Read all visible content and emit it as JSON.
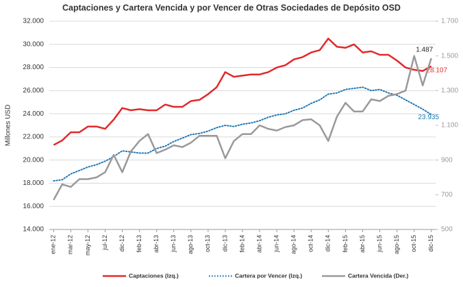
{
  "chart_data": {
    "type": "line",
    "title": "Captaciones y Cartera Vencida y por Vencer de Otras Sociedades de Depósito OSD",
    "y_label": "Millones USD",
    "categories": [
      "ene-12",
      null,
      "mar-12",
      null,
      "may-12",
      null,
      "jul-12",
      null,
      "dic-12",
      null,
      "feb-13",
      null,
      "abr-13",
      null,
      "jun-13",
      null,
      "ago-13",
      null,
      "oct-13",
      null,
      "dic-13",
      null,
      "feb-14",
      null,
      "abr-14",
      null,
      "jun-14",
      null,
      "ago-14",
      null,
      "oct-14",
      null,
      "dic-14",
      null,
      "feb-15",
      null,
      "abr-15",
      null,
      "jun-15",
      null,
      "ago-15",
      null,
      "oct-15",
      null,
      "dic-15"
    ],
    "ylim": [
      14000,
      32000
    ],
    "yticks": [
      {
        "value": 14000,
        "label": "14.000"
      },
      {
        "value": 16000,
        "label": "16.000"
      },
      {
        "value": 18000,
        "label": "18.000"
      },
      {
        "value": 20000,
        "label": "20.000"
      },
      {
        "value": 22000,
        "label": "22.000"
      },
      {
        "value": 24000,
        "label": "24.000"
      },
      {
        "value": 26000,
        "label": "26.000"
      },
      {
        "value": 28000,
        "label": "28.000"
      },
      {
        "value": 30000,
        "label": "30.000"
      },
      {
        "value": 32000,
        "label": "32.000"
      }
    ],
    "y2lim": [
      500,
      1700
    ],
    "y2ticks": [
      500,
      700,
      900,
      {
        "value": 1100,
        "label": "1.100"
      },
      {
        "value": 1300,
        "label": "1.300"
      },
      {
        "value": 1500,
        "label": "1.500"
      },
      {
        "value": 1700,
        "label": "1.700"
      }
    ],
    "grid": true,
    "legend": "bottom",
    "series": [
      {
        "name": "Captaciones (Izq.)",
        "color": "#e2282a",
        "dash": "solid",
        "values": [
          21300,
          21700,
          22400,
          22400,
          22900,
          22900,
          22700,
          23500,
          24500,
          24300,
          24400,
          24300,
          24300,
          24800,
          24600,
          24600,
          25100,
          25200,
          25700,
          26300,
          27600,
          27200,
          27300,
          27400,
          27400,
          27600,
          28000,
          28200,
          28700,
          28900,
          29300,
          29500,
          30500,
          29800,
          29700,
          30000,
          29300,
          29400,
          29100,
          29100,
          28600,
          28000,
          27800,
          27700,
          28107
        ],
        "value_labels": [
          null,
          null,
          null,
          null,
          null,
          null,
          null,
          null,
          null,
          null,
          null,
          null,
          null,
          null,
          null,
          null,
          null,
          null,
          null,
          null,
          null,
          null,
          null,
          null,
          null,
          null,
          null,
          null,
          null,
          null,
          null,
          null,
          null,
          null,
          null,
          null,
          null,
          null,
          null,
          null,
          null,
          null,
          null,
          null,
          "28.107"
        ]
      },
      {
        "name": "Cartera por Vencer (Izq.)",
        "color": "#1f78b4",
        "dash": "dotted",
        "values": [
          18200,
          18300,
          18800,
          19100,
          19400,
          19600,
          19900,
          20300,
          20800,
          20700,
          20600,
          20600,
          21000,
          21200,
          21600,
          21900,
          22200,
          22300,
          22500,
          22800,
          23000,
          22900,
          23100,
          23200,
          23400,
          23700,
          23900,
          24000,
          24300,
          24500,
          24900,
          25200,
          25700,
          25800,
          26100,
          26200,
          26300,
          26000,
          26100,
          25800,
          25600,
          25200,
          24800,
          24400,
          23935
        ],
        "value_labels": [
          null,
          null,
          null,
          null,
          null,
          null,
          null,
          null,
          null,
          null,
          null,
          null,
          null,
          null,
          null,
          null,
          null,
          null,
          null,
          null,
          null,
          null,
          null,
          null,
          null,
          null,
          null,
          null,
          null,
          null,
          null,
          null,
          null,
          null,
          null,
          null,
          null,
          null,
          null,
          null,
          null,
          null,
          null,
          null,
          "23.935"
        ]
      },
      {
        "name": "Cartera Vencida (Der.)",
        "color": "#999999",
        "dash": "solid",
        "axis": "y2",
        "values": [
          670,
          760,
          745,
          790,
          790,
          800,
          830,
          930,
          830,
          950,
          1010,
          1050,
          940,
          960,
          985,
          975,
          1000,
          1040,
          1040,
          1040,
          910,
          1010,
          1050,
          1050,
          1100,
          1080,
          1070,
          1090,
          1100,
          1130,
          1135,
          1100,
          1010,
          1150,
          1230,
          1180,
          1180,
          1250,
          1240,
          1270,
          1280,
          1300,
          1500,
          1330,
          1487
        ],
        "value_labels": [
          null,
          null,
          null,
          null,
          null,
          null,
          null,
          null,
          null,
          null,
          null,
          null,
          null,
          null,
          null,
          null,
          null,
          null,
          null,
          null,
          null,
          null,
          null,
          null,
          null,
          null,
          null,
          null,
          null,
          null,
          null,
          null,
          null,
          null,
          null,
          null,
          null,
          null,
          null,
          null,
          null,
          null,
          null,
          null,
          "1.487"
        ]
      }
    ]
  }
}
